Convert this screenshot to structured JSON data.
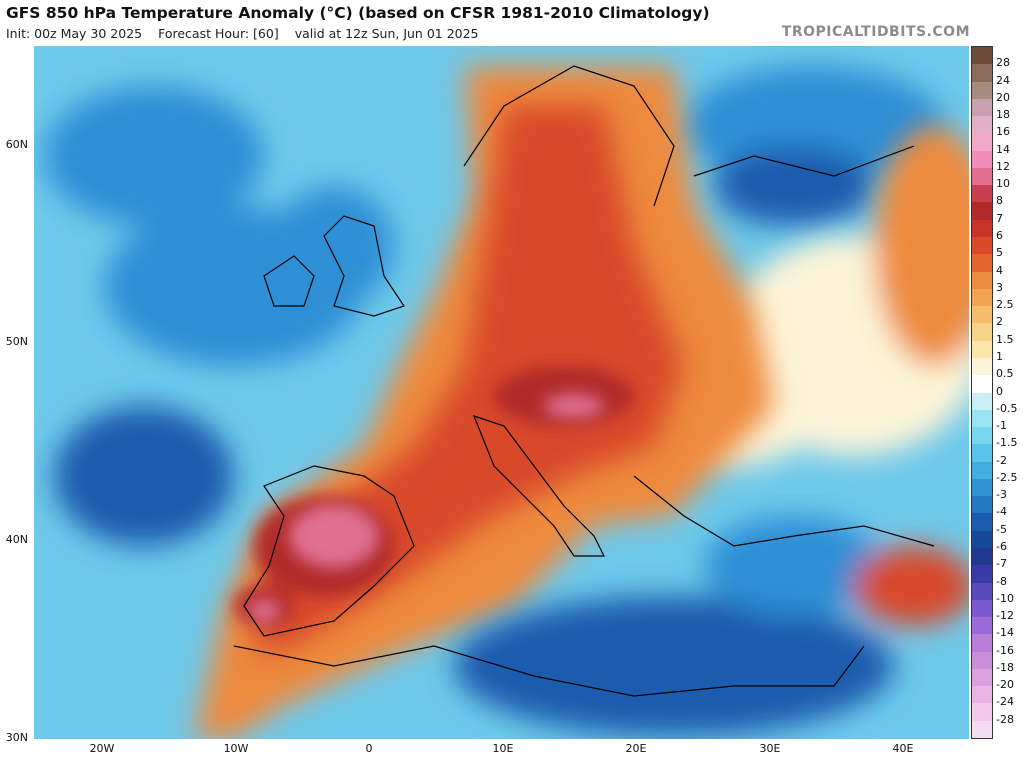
{
  "header": {
    "title": "GFS 850 hPa Temperature Anomaly (°C) (based on CFSR 1981-2010 Climatology)",
    "init": "Init: 00z May 30 2025",
    "forecast_hour": "Forecast Hour: [60]",
    "valid": "valid at 12z Sun, Jun 01 2025",
    "site": "TROPICALTIDBITS.COM"
  },
  "axes": {
    "lat_ticks": [
      "60N",
      "50N",
      "40N",
      "30N"
    ],
    "lon_ticks": [
      "20W",
      "10W",
      "0",
      "10E",
      "20E",
      "30E",
      "40E"
    ]
  },
  "colorbar": {
    "labels": [
      "28",
      "24",
      "20",
      "18",
      "16",
      "14",
      "12",
      "10",
      "8",
      "7",
      "6",
      "5",
      "4",
      "3",
      "2.5",
      "2",
      "1.5",
      "1",
      "0.5",
      "0",
      "-0.5",
      "-1",
      "-1.5",
      "-2",
      "-2.5",
      "-3",
      "-4",
      "-5",
      "-6",
      "-7",
      "-8",
      "-10",
      "-12",
      "-14",
      "-16",
      "-18",
      "-20",
      "-24",
      "-28"
    ],
    "colors": [
      "#6b4a3a",
      "#8a6a5a",
      "#a88a80",
      "#c9a0b0",
      "#e0b0c8",
      "#f2a8c8",
      "#f28cb8",
      "#e07090",
      "#c84050",
      "#b02a2a",
      "#c83228",
      "#d84a2a",
      "#e4642e",
      "#ee8a3c",
      "#f2a452",
      "#f6be6a",
      "#f8d488",
      "#fae6a8",
      "#fcf4d8",
      "#ffffff",
      "#c8f0f4",
      "#98e4f0",
      "#78d6ee",
      "#58c4ea",
      "#40aee0",
      "#2e94d2",
      "#2478c2",
      "#1c5cae",
      "#184898",
      "#203890",
      "#3a3aa8",
      "#5a4ac0",
      "#7a58d0",
      "#9a6ad8",
      "#b87ed8",
      "#cc8ed8",
      "#dca0dc",
      "#e8b4e4",
      "#f2c8ec"
    ],
    "bottom_color": "#f4dcf0"
  },
  "map": {
    "colors": {
      "ocean_cool": "#6fc9ea",
      "ocean_cold": "#2e8fd6",
      "deep_cold": "#1c5cae",
      "neutral": "#fcf4d8",
      "warm": "#ee8a3c",
      "hot": "#d84a2a",
      "very_hot": "#b02a2a",
      "extreme": "#e07090",
      "coast": "#000000"
    }
  }
}
